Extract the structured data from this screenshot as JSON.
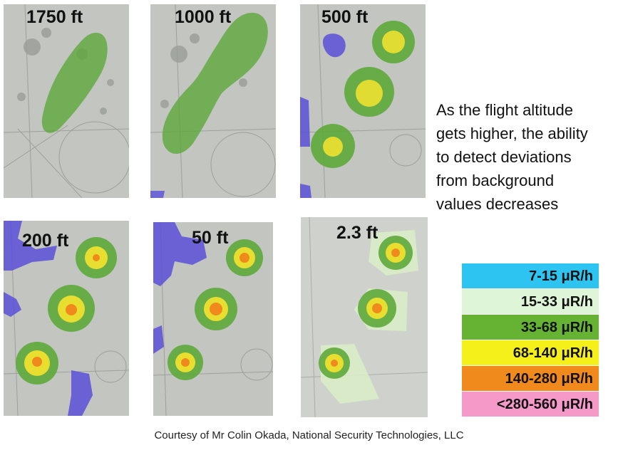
{
  "panels": [
    {
      "altitude_label": "1750 ft"
    },
    {
      "altitude_label": "1000 ft"
    },
    {
      "altitude_label": "500 ft"
    },
    {
      "altitude_label": "200 ft"
    },
    {
      "altitude_label": "50 ft"
    },
    {
      "altitude_label": "2.3 ft"
    }
  ],
  "caption": {
    "line1": "As the flight altitude",
    "line2": "gets higher, the ability",
    "line3": "to detect deviations",
    "line4": "from background",
    "line5": "values decreases"
  },
  "legend": {
    "items": [
      {
        "label": "7-15 μR/h",
        "color": "#2ec4f2"
      },
      {
        "label": "15-33 μR/h",
        "color": "#dff5d8"
      },
      {
        "label": "33-68 μR/h",
        "color": "#66b232"
      },
      {
        "label": "68-140 μR/h",
        "color": "#f5ef1a"
      },
      {
        "label": "140-280 μR/h",
        "color": "#f08a1c"
      },
      {
        "label": "<280-560 μR/h",
        "color": "#f59ac8"
      }
    ]
  },
  "credit": "Courtesy of Mr Colin Okada, National Security Technologies, LLC",
  "colors": {
    "background_low": "#5a4fd8",
    "ground": "#bfc2bd"
  }
}
